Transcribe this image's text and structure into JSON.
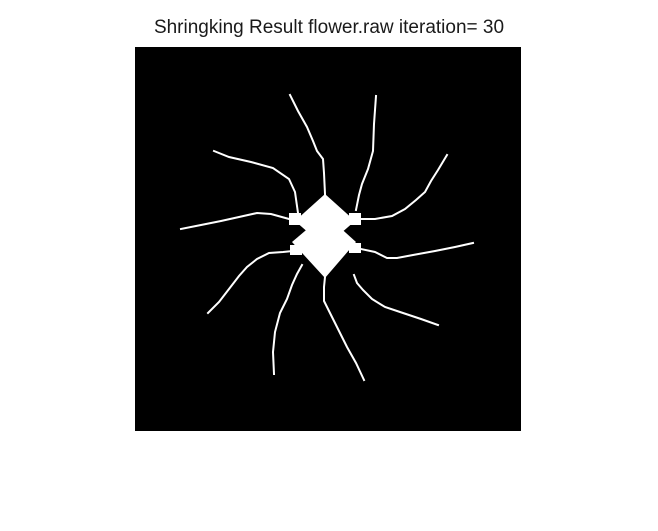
{
  "figure": {
    "title": "Shringking Result flower.raw iteration= 30"
  },
  "image": {
    "background_color": "#000000",
    "foreground_color": "#ffffff"
  }
}
